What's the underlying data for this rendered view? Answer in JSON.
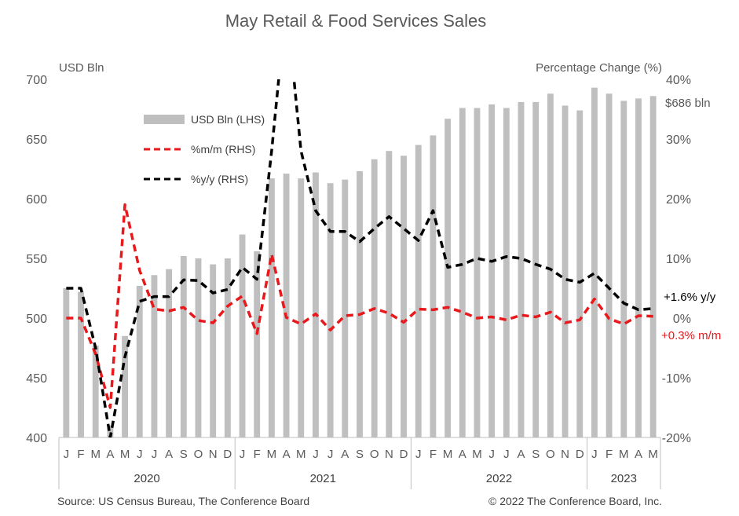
{
  "title": "May Retail & Food Services Sales",
  "left_axis_label": "USD Bln",
  "right_axis_label": "Percentage Change (%)",
  "footer": {
    "source": "Source: US Census Bureau, The Conference Board",
    "copyright": "© 2022 The Conference Board, Inc."
  },
  "annotations": {
    "level": "$686 bln",
    "yoy": "+1.6% y/y",
    "mom": "+0.3% m/m"
  },
  "colors": {
    "bars": "#bfbfbf",
    "mom": "#e8191d",
    "yoy": "#000000",
    "axis": "#bfbfbf",
    "text": "#595959"
  },
  "chart_data": {
    "type": "bar",
    "categories": [
      "J",
      "F",
      "M",
      "A",
      "M",
      "J",
      "J",
      "A",
      "S",
      "O",
      "N",
      "D",
      "J",
      "F",
      "M",
      "A",
      "M",
      "J",
      "J",
      "A",
      "S",
      "O",
      "N",
      "D",
      "J",
      "F",
      "M",
      "A",
      "M",
      "J",
      "J",
      "A",
      "S",
      "O",
      "N",
      "D",
      "J",
      "F",
      "M",
      "A",
      "M"
    ],
    "years": [
      {
        "label": "2020",
        "months": 12
      },
      {
        "label": "2021",
        "months": 12
      },
      {
        "label": "2022",
        "months": 12
      },
      {
        "label": "2023",
        "months": 5
      }
    ],
    "left_axis": {
      "min": 400,
      "max": 700,
      "ticks": [
        "400",
        "450",
        "500",
        "550",
        "600",
        "650",
        "700"
      ]
    },
    "right_axis": {
      "min": -20,
      "max": 40,
      "ticks": [
        "-20%",
        "-10%",
        "0%",
        "10%",
        "20%",
        "30%",
        "40%"
      ]
    },
    "legend": [
      {
        "label": "USD Bln (LHS)",
        "style": "bar"
      },
      {
        "label": "%m/m (RHS)",
        "style": "red-dash"
      },
      {
        "label": "%y/y (RHS)",
        "style": "black-dash"
      }
    ],
    "series": [
      {
        "name": "USD Bln (LHS)",
        "axis": "left",
        "kind": "bar",
        "values": [
          525,
          522,
          477,
          410,
          485,
          527,
          536,
          541,
          552,
          550,
          545,
          550,
          570,
          556,
          617,
          621,
          617,
          622,
          613,
          616,
          623,
          633,
          640,
          636,
          645,
          653,
          667,
          676,
          676,
          679,
          676,
          681,
          681,
          688,
          678,
          674,
          693,
          688,
          682,
          684,
          686
        ]
      },
      {
        "name": "%m/m (RHS)",
        "axis": "right",
        "kind": "line",
        "values": [
          0,
          0,
          -6,
          -15,
          19,
          8,
          1.5,
          1.2,
          1.8,
          -0.4,
          -0.8,
          2.0,
          3.7,
          -2.6,
          10.7,
          0.1,
          -1.0,
          0.7,
          -2.0,
          0.4,
          0.6,
          1.6,
          0.8,
          -0.7,
          1.5,
          1.4,
          1.8,
          1.0,
          0,
          0.2,
          -0.3,
          0.5,
          0.2,
          1.0,
          -0.8,
          -0.3,
          3.2,
          -0.1,
          -1.0,
          0.4,
          0.3
        ]
      },
      {
        "name": "%y/y (RHS)",
        "axis": "right",
        "kind": "line",
        "values": [
          5.0,
          5.0,
          -5.0,
          -20,
          -6.5,
          2.8,
          3.6,
          3.6,
          6.4,
          6.3,
          4.2,
          4.8,
          8.5,
          6.5,
          28.0,
          53.0,
          28.0,
          18.0,
          14.5,
          14.5,
          12.8,
          15.0,
          17.0,
          15.0,
          13.0,
          18.0,
          8.5,
          9.0,
          10.0,
          9.5,
          10.3,
          10.0,
          9.0,
          8.2,
          6.5,
          6.0,
          7.5,
          5.0,
          2.5,
          1.4,
          1.6
        ]
      }
    ]
  }
}
